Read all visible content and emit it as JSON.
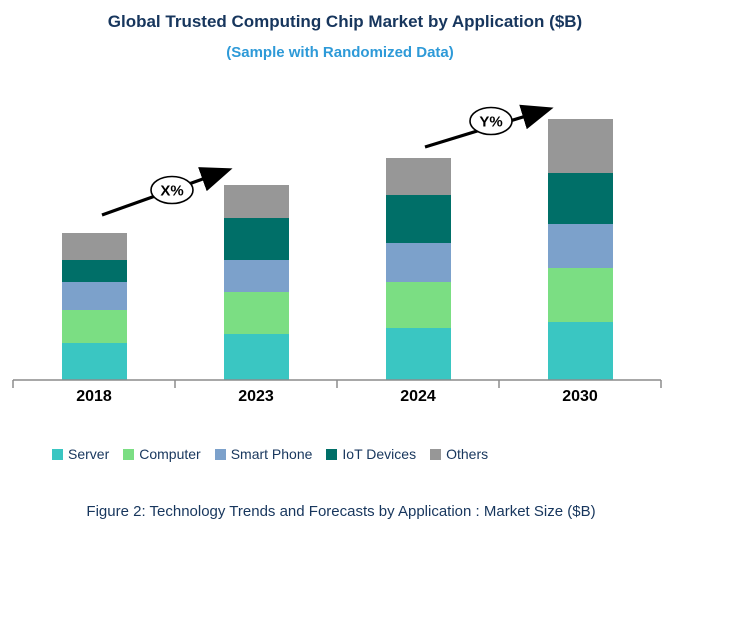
{
  "header": {
    "title": "Global Trusted Computing Chip Market by Application ($B)",
    "subtitle": "(Sample with Randomized Data)"
  },
  "chart_data": {
    "type": "bar",
    "stacked": true,
    "title": "Global Trusted Computing Chip Market by Application ($B)",
    "subtitle": "(Sample with Randomized Data)",
    "categories": [
      "2018",
      "2023",
      "2024",
      "2030"
    ],
    "series": [
      {
        "name": "Server",
        "color": "#3AC6C2",
        "values": [
          37,
          46,
          52,
          58
        ]
      },
      {
        "name": "Computer",
        "color": "#7BDE83",
        "values": [
          33,
          42,
          46,
          54
        ]
      },
      {
        "name": "Smart Phone",
        "color": "#7CA1CB",
        "values": [
          28,
          32,
          39,
          44
        ]
      },
      {
        "name": "IoT Devices",
        "color": "#006F68",
        "values": [
          22,
          42,
          48,
          51
        ]
      },
      {
        "name": "Others",
        "color": "#979797",
        "values": [
          27,
          33,
          37,
          54
        ]
      }
    ],
    "stack_totals": [
      147,
      195,
      222,
      261
    ],
    "value_unit": "relative height — chart shows no value axis or data labels",
    "xlabel": "",
    "ylabel": "",
    "grid": false,
    "value_axis_visible": false,
    "legend_position": "bottom",
    "annotations": [
      {
        "label": "X%",
        "shape": "ellipse-on-arrow",
        "between": [
          "2018",
          "2023"
        ]
      },
      {
        "label": "Y%",
        "shape": "ellipse-on-arrow",
        "between": [
          "2024",
          "2030"
        ]
      }
    ]
  },
  "caption": "Figure 2: Technology Trends and Forecasts by Application : Market Size ($B)",
  "colors": {
    "title_text": "#17365D",
    "subtitle_text": "#2E9AD8",
    "legend_text": "#17365D",
    "caption_text": "#17365D",
    "axis_line": "#8C8C8C",
    "axis_label_text": "#000000",
    "annotation_stroke": "#000000",
    "annotation_fill": "#FFFFFF"
  }
}
